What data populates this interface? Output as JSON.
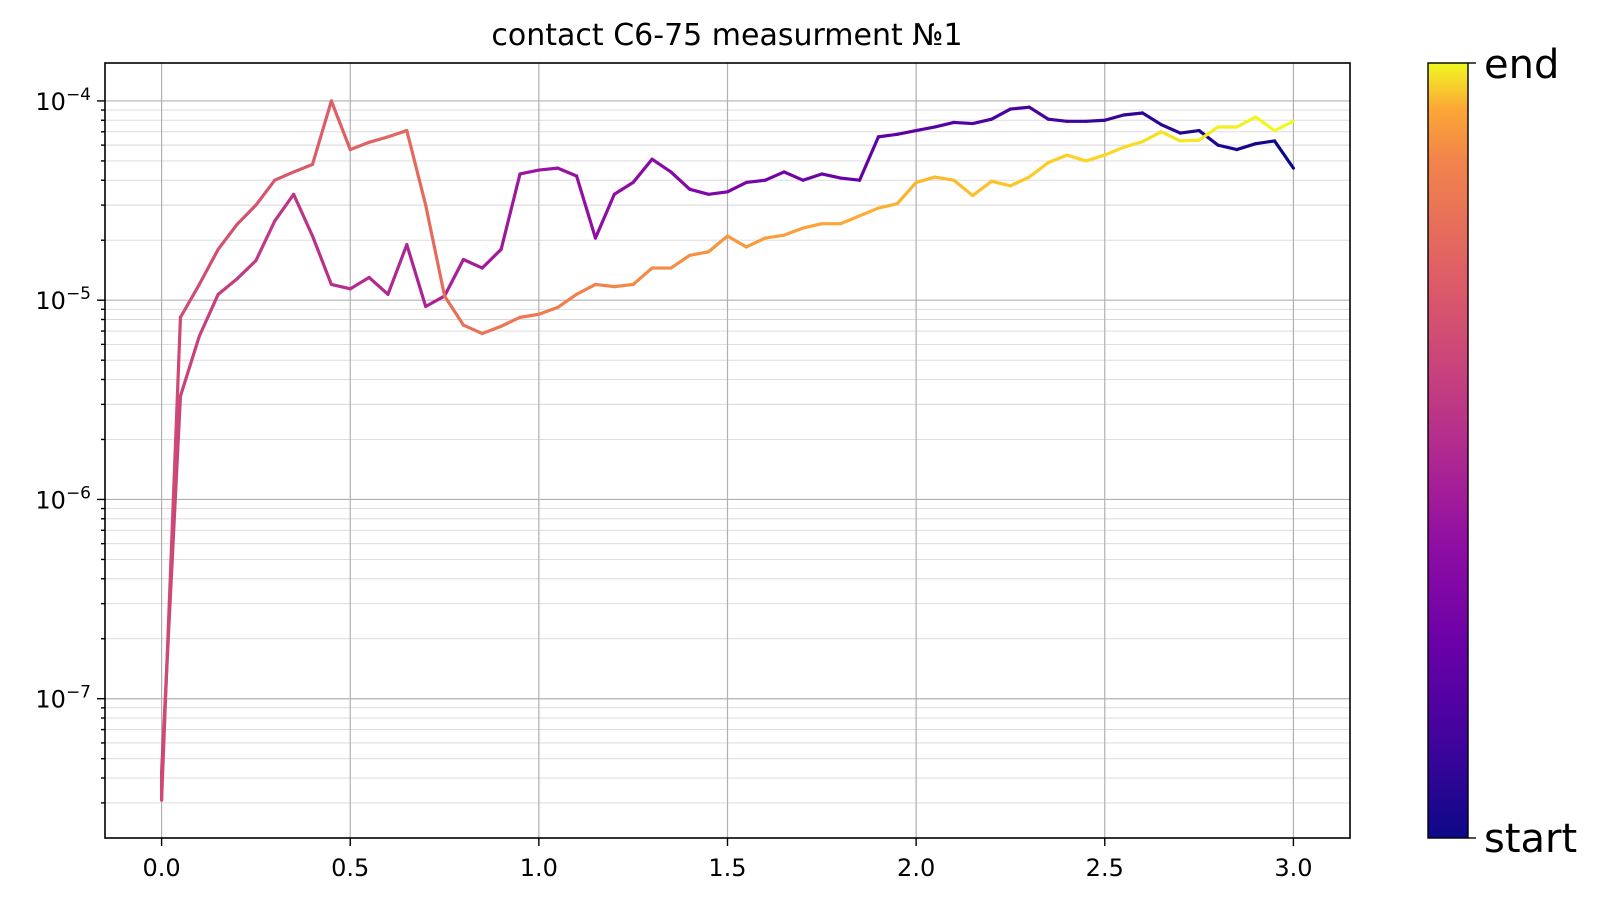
{
  "chart_data": {
    "type": "line",
    "title": "contact C6-75 measurment №1",
    "xlabel": "",
    "ylabel": "",
    "xlim": [
      -0.15,
      3.15
    ],
    "ylim": [
      2e-08,
      0.000155
    ],
    "yscale": "log",
    "grid": true,
    "x_ticks": [
      0.0,
      0.5,
      1.0,
      1.5,
      2.0,
      2.5,
      3.0
    ],
    "x_tick_labels": [
      "0.0",
      "0.5",
      "1.0",
      "1.5",
      "2.0",
      "2.5",
      "3.0"
    ],
    "y_ticks": [
      1e-07,
      1e-06,
      1e-05,
      0.0001
    ],
    "y_tick_labels": [
      {
        "base": "10",
        "exp": "−7"
      },
      {
        "base": "10",
        "exp": "−6"
      },
      {
        "base": "10",
        "exp": "−5"
      },
      {
        "base": "10",
        "exp": "−4"
      }
    ],
    "colormap": "plasma",
    "colorbar": {
      "start_label": "start",
      "end_label": "end"
    },
    "series": [
      {
        "segment": "start",
        "x": [
          3.0,
          2.95,
          2.9,
          2.85,
          2.8,
          2.75,
          2.7,
          2.65,
          2.6,
          2.55,
          2.5,
          2.45,
          2.4,
          2.35,
          2.3,
          2.25,
          2.2,
          2.15,
          2.1,
          2.05,
          2.0,
          1.95,
          1.9,
          1.85,
          1.8,
          1.75,
          1.7,
          1.65,
          1.6,
          1.55,
          1.5,
          1.45,
          1.4,
          1.35,
          1.3,
          1.25,
          1.2,
          1.15,
          1.1,
          1.05,
          1.0,
          0.95,
          0.9,
          0.85,
          0.8,
          0.75,
          0.7,
          0.65,
          0.6,
          0.55,
          0.5,
          0.45,
          0.4,
          0.35,
          0.3,
          0.25,
          0.2,
          0.15,
          0.1,
          0.05,
          0.0
        ],
        "y": [
          4.6e-05,
          6.3e-05,
          6.1e-05,
          5.7e-05,
          6e-05,
          7.1e-05,
          6.9e-05,
          7.6e-05,
          8.7e-05,
          8.5e-05,
          8e-05,
          7.9e-05,
          7.9e-05,
          8.1e-05,
          9.3e-05,
          9.1e-05,
          8.1e-05,
          7.7e-05,
          7.8e-05,
          7.4e-05,
          7.1e-05,
          6.8e-05,
          6.6e-05,
          4e-05,
          4.1e-05,
          4.3e-05,
          4e-05,
          4.4e-05,
          4e-05,
          3.9e-05,
          3.5e-05,
          3.4e-05,
          3.6e-05,
          4.4e-05,
          5.1e-05,
          3.9e-05,
          3.4e-05,
          2.05e-05,
          4.2e-05,
          4.6e-05,
          4.5e-05,
          4.3e-05,
          1.8e-05,
          1.45e-05,
          1.6e-05,
          1.05e-05,
          9.3e-06,
          1.9e-05,
          1.07e-05,
          1.3e-05,
          1.14e-05,
          1.2e-05,
          2.1e-05,
          3.4e-05,
          2.5e-05,
          1.58e-05,
          1.28e-05,
          1.07e-05,
          6.6e-06,
          3.3e-06,
          4.3e-08
        ]
      },
      {
        "segment": "end",
        "x": [
          0.0,
          0.05,
          0.1,
          0.15,
          0.2,
          0.25,
          0.3,
          0.35,
          0.4,
          0.45,
          0.5,
          0.55,
          0.6,
          0.65,
          0.7,
          0.75,
          0.8,
          0.85,
          0.9,
          0.95,
          1.0,
          1.05,
          1.1,
          1.15,
          1.2,
          1.25,
          1.3,
          1.35,
          1.4,
          1.45,
          1.5,
          1.55,
          1.6,
          1.65,
          1.7,
          1.75,
          1.8,
          1.85,
          1.9,
          1.95,
          2.0,
          2.05,
          2.1,
          2.15,
          2.2,
          2.25,
          2.3,
          2.35,
          2.4,
          2.45,
          2.5,
          2.55,
          2.6,
          2.65,
          2.7,
          2.75,
          2.8,
          2.85,
          2.9,
          2.95,
          3.0
        ],
        "y": [
          3.1e-08,
          8.2e-06,
          1.2e-05,
          1.8e-05,
          2.4e-05,
          3e-05,
          4e-05,
          4.4e-05,
          4.8e-05,
          0.0001,
          5.7e-05,
          6.2e-05,
          6.6e-05,
          7.1e-05,
          3e-05,
          1.05e-05,
          7.5e-06,
          6.8e-06,
          7.4e-06,
          8.2e-06,
          8.5e-06,
          9.2e-06,
          1.07e-05,
          1.2e-05,
          1.17e-05,
          1.2e-05,
          1.45e-05,
          1.45e-05,
          1.68e-05,
          1.75e-05,
          2.1e-05,
          1.85e-05,
          2.05e-05,
          2.12e-05,
          2.3e-05,
          2.42e-05,
          2.42e-05,
          2.65e-05,
          2.9e-05,
          3.05e-05,
          3.9e-05,
          4.15e-05,
          4e-05,
          3.35e-05,
          3.95e-05,
          3.75e-05,
          4.15e-05,
          4.9e-05,
          5.35e-05,
          5e-05,
          5.35e-05,
          5.85e-05,
          6.25e-05,
          7e-05,
          6.3e-05,
          6.35e-05,
          7.4e-05,
          7.4e-05,
          8.3e-05,
          7.1e-05,
          7.9e-05
        ]
      }
    ]
  }
}
